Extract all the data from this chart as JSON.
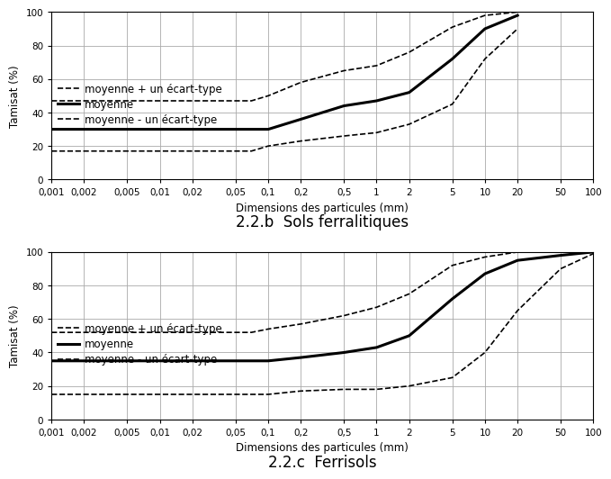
{
  "top_chart": {
    "title": "2.2.b  Sols ferralitiques",
    "mean_x": [
      0.001,
      0.07,
      0.1,
      0.2,
      0.5,
      1.0,
      2.0,
      5.0,
      10.0,
      20.0
    ],
    "mean_y": [
      30,
      30,
      30,
      36,
      44,
      47,
      52,
      72,
      90,
      98
    ],
    "mean_plus_x": [
      0.001,
      0.07,
      0.1,
      0.2,
      0.5,
      1.0,
      2.0,
      5.0,
      10.0,
      20.0
    ],
    "mean_plus_y": [
      47,
      47,
      50,
      58,
      65,
      68,
      76,
      91,
      98,
      100
    ],
    "mean_minus_x": [
      0.001,
      0.07,
      0.1,
      0.2,
      0.5,
      1.0,
      2.0,
      5.0,
      10.0,
      20.0
    ],
    "mean_minus_y": [
      17,
      17,
      20,
      23,
      26,
      28,
      33,
      45,
      72,
      90
    ]
  },
  "bottom_chart": {
    "title": "2.2.c  Ferrisols",
    "mean_x": [
      0.001,
      0.07,
      0.1,
      0.2,
      0.5,
      1.0,
      2.0,
      5.0,
      10.0,
      20.0,
      50.0,
      100.0
    ],
    "mean_y": [
      35,
      35,
      35,
      37,
      40,
      43,
      50,
      72,
      87,
      95,
      98,
      100
    ],
    "mean_plus_x": [
      0.001,
      0.07,
      0.1,
      0.2,
      0.5,
      1.0,
      2.0,
      5.0,
      10.0,
      20.0,
      50.0,
      100.0
    ],
    "mean_plus_y": [
      52,
      52,
      54,
      57,
      62,
      67,
      75,
      92,
      97,
      100,
      100,
      100
    ],
    "mean_minus_x": [
      0.001,
      0.07,
      0.1,
      0.2,
      0.5,
      1.0,
      2.0,
      5.0,
      10.0,
      20.0,
      50.0,
      100.0
    ],
    "mean_minus_y": [
      15,
      15,
      15,
      17,
      18,
      18,
      20,
      25,
      40,
      65,
      90,
      99
    ]
  },
  "xlabel": "Dimensions des particules (mm)",
  "ylabel": "Tamisat (%)",
  "ylim": [
    0,
    100
  ],
  "xticks": [
    0.001,
    0.002,
    0.005,
    0.01,
    0.02,
    0.05,
    0.1,
    0.2,
    0.5,
    1,
    2,
    5,
    10,
    20,
    50,
    100
  ],
  "xtick_labels": [
    "0,001",
    "0,002",
    "0,005",
    "0,01",
    "0,02",
    "0,05",
    "0,1",
    "0,2",
    "0,5",
    "1",
    "2",
    "5",
    "10",
    "20",
    "50",
    "100"
  ],
  "yticks": [
    0,
    20,
    40,
    60,
    80,
    100
  ],
  "legend_labels": [
    "moyenne + un écart-type",
    "moyenne",
    "moyenne - un écart-type"
  ],
  "line_color": "#000000",
  "bg_color": "#ffffff",
  "title_fontsize": 12,
  "label_fontsize": 8.5,
  "tick_fontsize": 7.5
}
